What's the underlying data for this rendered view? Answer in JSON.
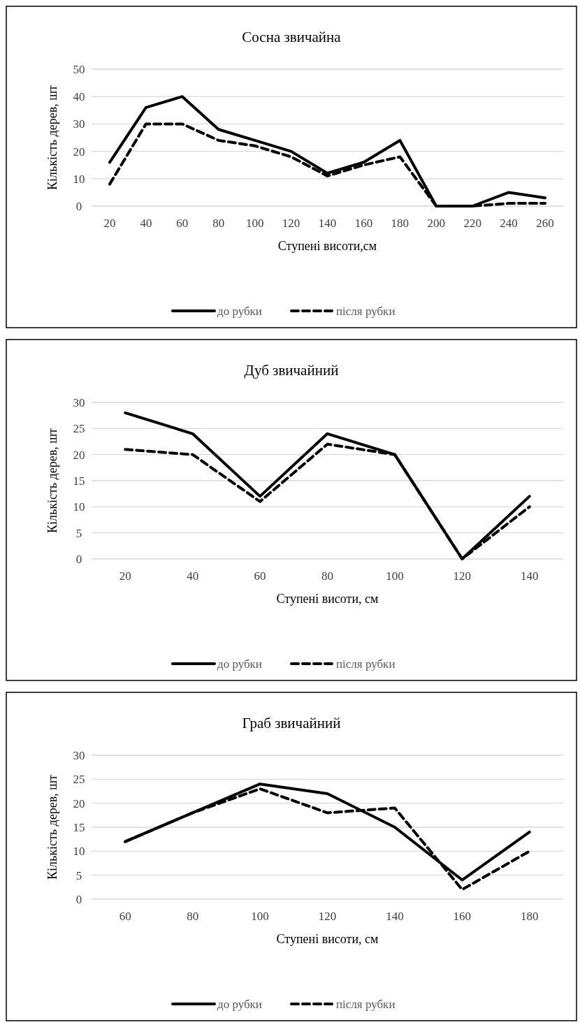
{
  "chart_data": [
    {
      "type": "line",
      "title": "Сосна звичайна",
      "xlabel": "Ступені висоти,см",
      "ylabel": "Кількість дерев, шт",
      "categories": [
        "20",
        "40",
        "60",
        "80",
        "100",
        "120",
        "140",
        "160",
        "180",
        "200",
        "220",
        "240",
        "260"
      ],
      "ylim": [
        0,
        50
      ],
      "yticks": [
        0,
        10,
        20,
        30,
        40,
        50
      ],
      "grid": "y",
      "legend": "bottom",
      "series": [
        {
          "name": "до рубки",
          "color": "#000000",
          "line_style": "solid",
          "values": [
            16,
            36,
            40,
            28,
            24,
            20,
            12,
            16,
            24,
            0,
            0,
            5,
            3
          ]
        },
        {
          "name": "після рубки",
          "color": "#000000",
          "line_style": "dashed",
          "values": [
            8,
            30,
            30,
            24,
            22,
            18,
            11,
            15,
            18,
            0,
            0,
            1,
            1
          ]
        }
      ]
    },
    {
      "type": "line",
      "title": "Дуб звичайний",
      "xlabel": "Ступені висоти, см",
      "ylabel": "Кількість дерев, шт",
      "categories": [
        "20",
        "40",
        "60",
        "80",
        "100",
        "120",
        "140"
      ],
      "ylim": [
        0,
        30
      ],
      "yticks": [
        0,
        5,
        10,
        15,
        20,
        25,
        30
      ],
      "grid": "y",
      "legend": "bottom",
      "series": [
        {
          "name": "до рубки",
          "color": "#000000",
          "line_style": "solid",
          "values": [
            28,
            24,
            12,
            24,
            20,
            0,
            12
          ]
        },
        {
          "name": "після рубки",
          "color": "#000000",
          "line_style": "dashed",
          "values": [
            21,
            20,
            11,
            22,
            20,
            0,
            10
          ]
        }
      ]
    },
    {
      "type": "line",
      "title": "Граб звичайний",
      "xlabel": "Ступені висоти, см",
      "ylabel": "Кількість дерев, шт",
      "categories": [
        "60",
        "80",
        "100",
        "120",
        "140",
        "160",
        "180"
      ],
      "ylim": [
        0,
        30
      ],
      "yticks": [
        0,
        5,
        10,
        15,
        20,
        25,
        30
      ],
      "grid": "y",
      "legend": "bottom",
      "series": [
        {
          "name": "до рубки",
          "color": "#000000",
          "line_style": "solid",
          "values": [
            12,
            18,
            24,
            22,
            15,
            4,
            14
          ]
        },
        {
          "name": "після рубки",
          "color": "#000000",
          "line_style": "dashed",
          "values": [
            12,
            18,
            23,
            18,
            19,
            2,
            10
          ]
        }
      ]
    }
  ]
}
